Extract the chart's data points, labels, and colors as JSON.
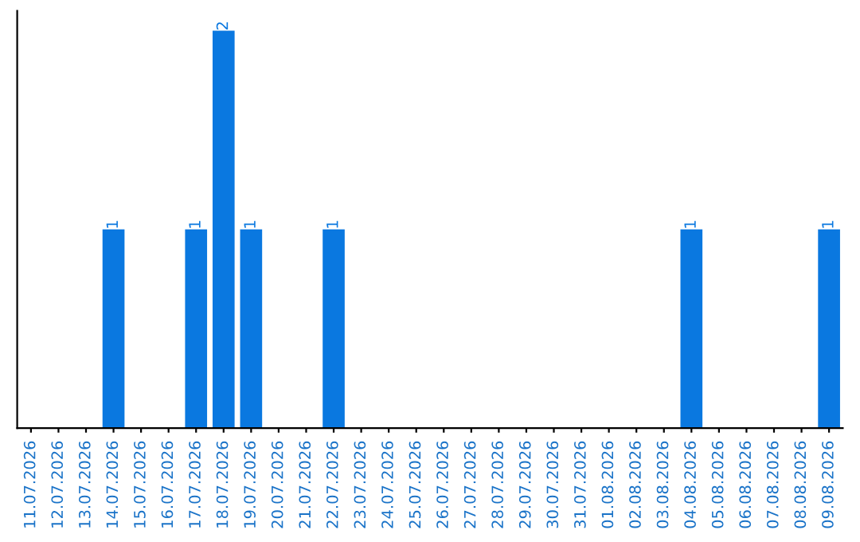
{
  "chart_data": {
    "type": "bar",
    "categories": [
      "11.07.2026",
      "12.07.2026",
      "13.07.2026",
      "14.07.2026",
      "15.07.2026",
      "16.07.2026",
      "17.07.2026",
      "18.07.2026",
      "19.07.2026",
      "20.07.2026",
      "21.07.2026",
      "22.07.2026",
      "23.07.2026",
      "24.07.2026",
      "25.07.2026",
      "26.07.2026",
      "27.07.2026",
      "28.07.2026",
      "29.07.2026",
      "30.07.2026",
      "31.07.2026",
      "01.08.2026",
      "02.08.2026",
      "03.08.2026",
      "04.08.2026",
      "05.08.2026",
      "06.08.2026",
      "07.08.2026",
      "08.08.2026",
      "09.08.2026"
    ],
    "values": [
      0,
      0,
      0,
      1,
      0,
      0,
      1,
      2,
      1,
      0,
      0,
      1,
      0,
      0,
      0,
      0,
      0,
      0,
      0,
      0,
      0,
      0,
      0,
      0,
      1,
      0,
      0,
      0,
      0,
      1
    ],
    "value_labels": [
      null,
      null,
      null,
      "1",
      null,
      null,
      "1",
      "2",
      "1",
      null,
      null,
      "1",
      null,
      null,
      null,
      null,
      null,
      null,
      null,
      null,
      null,
      null,
      null,
      null,
      "1",
      null,
      null,
      null,
      null,
      "1"
    ],
    "color": "#0a78e0",
    "tick_labels": "x",
    "grid": false,
    "legend": false
  }
}
